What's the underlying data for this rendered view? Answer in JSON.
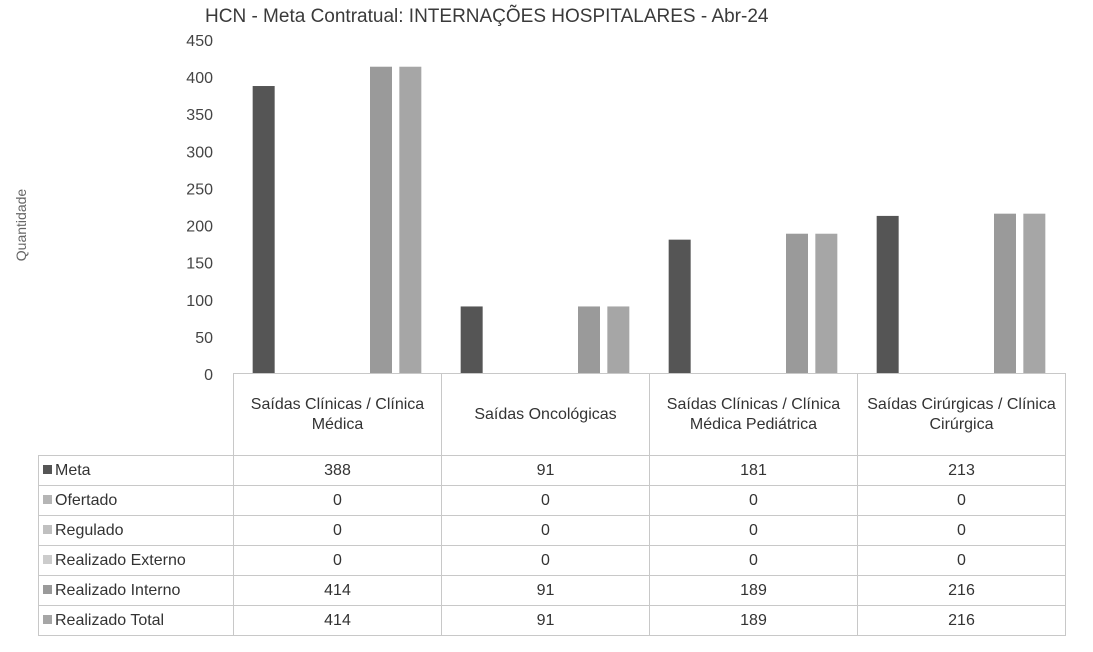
{
  "chart_data": {
    "type": "bar",
    "title": "HCN - Meta Contratual: INTERNAÇÕES HOSPITALARES - Abr-24",
    "ylabel": "Quantidade",
    "xlabel": "",
    "ylim": [
      0,
      450
    ],
    "yticks": [
      "0",
      "50",
      "100",
      "150",
      "200",
      "250",
      "300",
      "350",
      "400",
      "450"
    ],
    "grid": false,
    "legend": "data table below chart",
    "categories": [
      "Saídas Clínicas / Clínica Médica",
      "Saídas Oncológicas",
      "Saídas Clínicas / Clínica Médica Pediátrica",
      "Saídas Cirúrgicas / Clínica Cirúrgica"
    ],
    "series": [
      {
        "name": "Meta",
        "color": "#555555",
        "values": [
          388,
          91,
          181,
          213
        ]
      },
      {
        "name": "Ofertado",
        "color": "#b5b5b5",
        "values": [
          0,
          0,
          0,
          0
        ]
      },
      {
        "name": "Regulado",
        "color": "#c0c0c0",
        "values": [
          0,
          0,
          0,
          0
        ]
      },
      {
        "name": "Realizado Externo",
        "color": "#cccccc",
        "values": [
          0,
          0,
          0,
          0
        ]
      },
      {
        "name": "Realizado Interno",
        "color": "#9a9a9a",
        "values": [
          414,
          91,
          189,
          216
        ]
      },
      {
        "name": "Realizado Total",
        "color": "#a6a6a6",
        "values": [
          414,
          91,
          189,
          216
        ]
      }
    ]
  }
}
